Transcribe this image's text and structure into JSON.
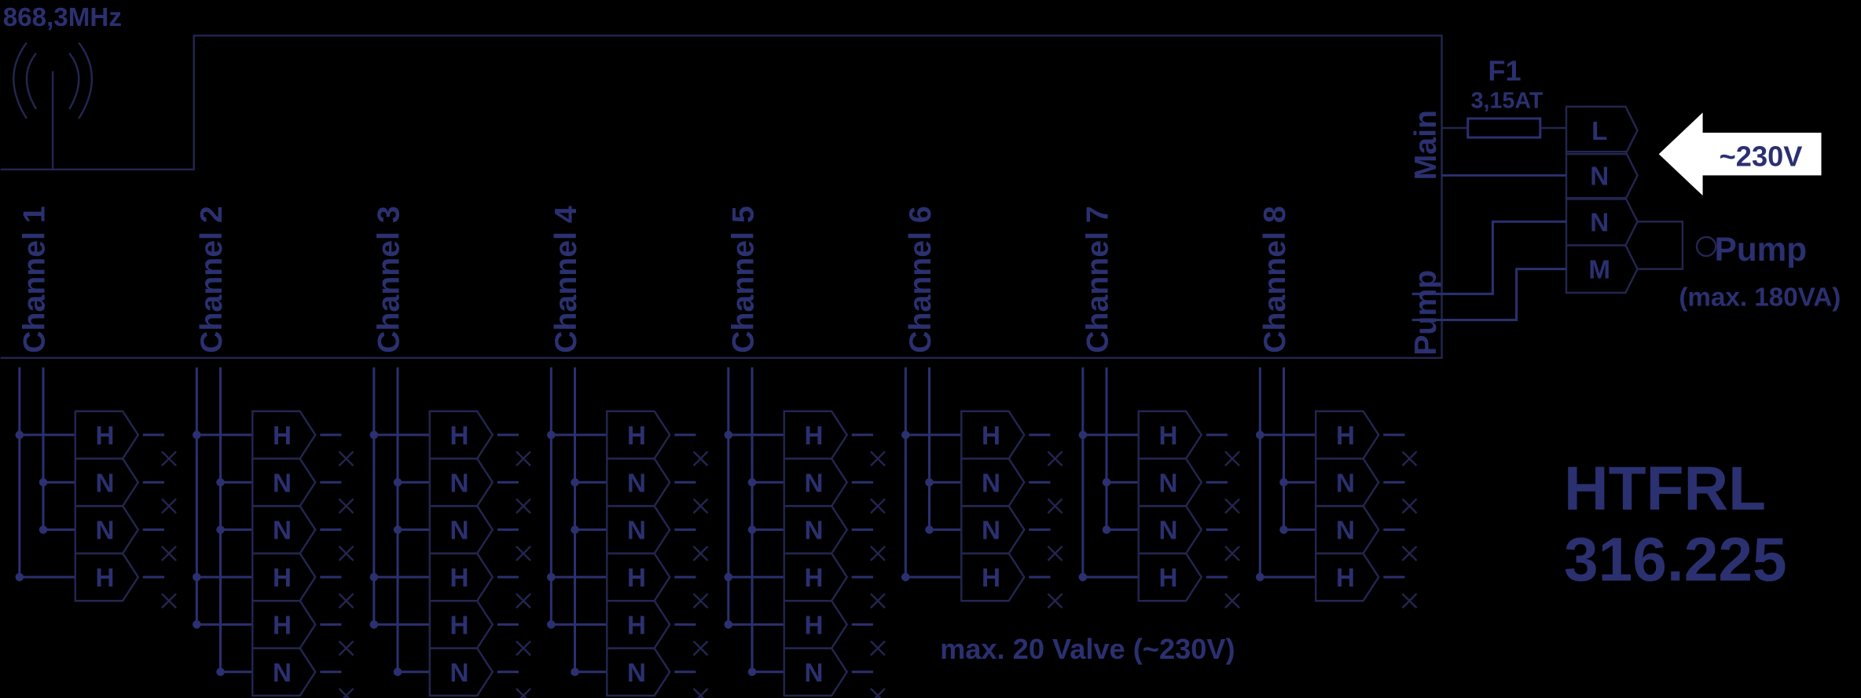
{
  "frequency": "868,3MHz",
  "channels": [
    {
      "label": "Channel 1",
      "terminals": [
        "H",
        "N",
        "N",
        "H"
      ]
    },
    {
      "label": "Channel 2",
      "terminals": [
        "H",
        "N",
        "N",
        "H",
        "H",
        "N"
      ]
    },
    {
      "label": "Channel 3",
      "terminals": [
        "H",
        "N",
        "N",
        "H",
        "H",
        "N"
      ]
    },
    {
      "label": "Channel 4",
      "terminals": [
        "H",
        "N",
        "N",
        "H",
        "H",
        "N"
      ]
    },
    {
      "label": "Channel 5",
      "terminals": [
        "H",
        "N",
        "N",
        "H",
        "H",
        "N"
      ]
    },
    {
      "label": "Channel 6",
      "terminals": [
        "H",
        "N",
        "N",
        "H"
      ]
    },
    {
      "label": "Channel 7",
      "terminals": [
        "H",
        "N",
        "N",
        "H"
      ]
    },
    {
      "label": "Channel 8",
      "terminals": [
        "H",
        "N",
        "N",
        "H"
      ]
    }
  ],
  "fuse": {
    "name": "F1",
    "rating": "3,15AT"
  },
  "main_label": "Main",
  "pump_side_label": "Pump",
  "terminals": [
    "L",
    "N",
    "N",
    "M"
  ],
  "supply": "~230V",
  "pump": {
    "label": "Pump",
    "rating": "(max. 180VA)"
  },
  "model": {
    "name": "HTFRL",
    "number": "316.225"
  },
  "note": "max. 20 Valve (~230V)"
}
